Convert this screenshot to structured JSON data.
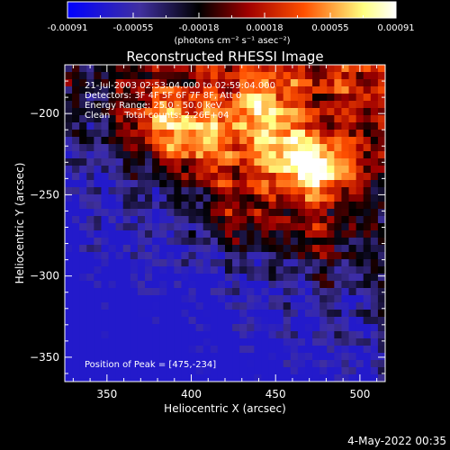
{
  "chart_data": {
    "type": "heatmap",
    "title": "Reconstructed RHESSI Image",
    "xlabel": "Heliocentric X (arcsec)",
    "ylabel": "Heliocentric Y (arcsec)",
    "xlim": [
      325,
      515
    ],
    "ylim": [
      -365,
      -170
    ],
    "x_ticks": [
      350,
      400,
      450,
      500
    ],
    "y_ticks": [
      -200,
      -250,
      -300,
      -350
    ],
    "x_tick_labels": [
      "350",
      "400",
      "450",
      "500"
    ],
    "y_tick_labels": [
      "−200",
      "−250",
      "−300",
      "−350"
    ],
    "colorbar": {
      "range": [
        -0.00091,
        0.00091
      ],
      "tick_labels": [
        "-0.00091",
        "-0.00055",
        "-0.00018",
        "0.00018",
        "0.00055",
        "0.00091"
      ],
      "units_label": "(photons cm⁻² s⁻¹ asec⁻²)",
      "colors": [
        "#0000ff",
        "#4030a0",
        "#000000",
        "#a00000",
        "#ff5000",
        "#ffff80",
        "#ffffff"
      ]
    },
    "annotations": [
      "21-Jul-2003 02:53:04.000 to 02:59:04.000",
      "Detectors: 3F 4F 5F 6F 7F 8F, Att 0",
      "Energy Range: 25.0 - 50.0 keV",
      "Clean     Total counts: 2.26E+04"
    ],
    "peak_label": "Position of Peak = [475,-234]",
    "peak_position": [
      475,
      -234
    ]
  },
  "footer": {
    "timestamp": "4-May-2022 00:35"
  }
}
